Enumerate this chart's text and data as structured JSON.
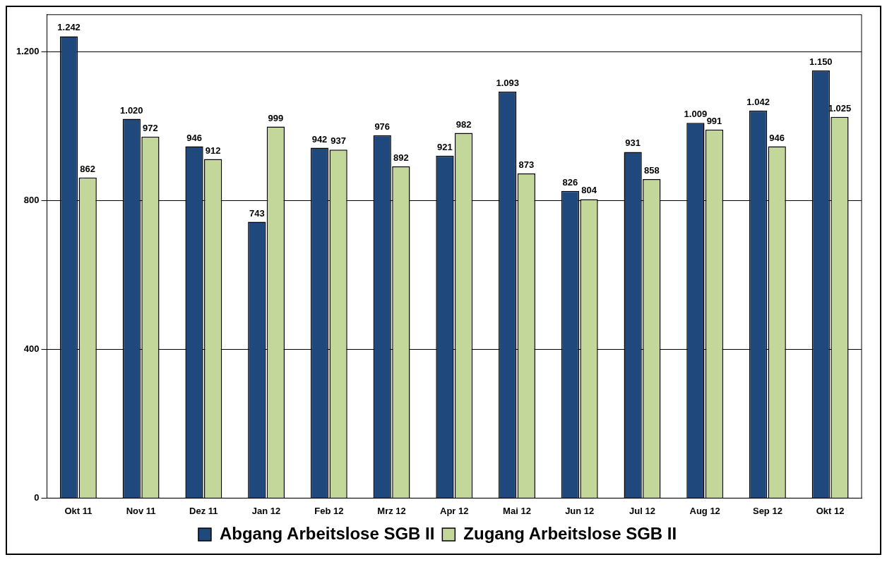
{
  "chart_data": {
    "type": "bar",
    "categories": [
      "Okt 11",
      "Nov 11",
      "Dez 11",
      "Jan 12",
      "Feb 12",
      "Mrz 12",
      "Apr 12",
      "Mai 12",
      "Jun 12",
      "Jul 12",
      "Aug 12",
      "Sep 12",
      "Okt 12"
    ],
    "series": [
      {
        "name": "Abgang Arbeitslose SGB II",
        "color": "#1f497d",
        "values": [
          1242,
          1020,
          946,
          743,
          942,
          976,
          921,
          1093,
          826,
          931,
          1009,
          1042,
          1150
        ],
        "value_labels": [
          "1.242",
          "1.020",
          "946",
          "743",
          "942",
          "976",
          "921",
          "1.093",
          "826",
          "931",
          "1.009",
          "1.042",
          "1.150"
        ]
      },
      {
        "name": "Zugang Arbeitslose SGB II",
        "color": "#c4d79b",
        "values": [
          862,
          972,
          912,
          999,
          937,
          892,
          982,
          873,
          804,
          858,
          991,
          946,
          1025
        ],
        "value_labels": [
          "862",
          "972",
          "912",
          "999",
          "937",
          "892",
          "982",
          "873",
          "804",
          "858",
          "991",
          "946",
          "1.025"
        ]
      }
    ],
    "ylim": [
      0,
      1300
    ],
    "yticks": [
      0,
      400,
      800,
      {
        "value": 1200,
        "label": "1.200"
      }
    ],
    "grid": "y",
    "legend": "bottom"
  }
}
